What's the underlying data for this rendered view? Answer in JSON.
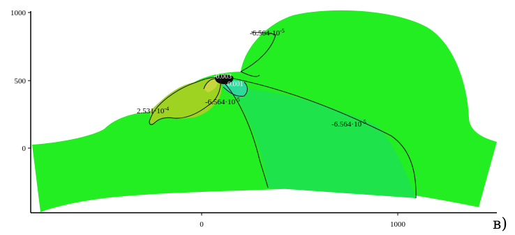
{
  "figure": {
    "caption": "в)",
    "colors": {
      "main_field": "#22ee22",
      "lower_field": "#1fe34a",
      "positive_region": "#9ed321",
      "peak_region": "#c8d83c",
      "negative_region": "#2fd99b",
      "core": "#0b0b0b",
      "contour": "#1a1a1a"
    },
    "x_ticks": [
      "0",
      "1000"
    ],
    "y_ticks": [
      "1000",
      "500",
      "0"
    ],
    "contour_labels": [
      {
        "base": "-6.564·10",
        "exp": "-5"
      },
      {
        "base": "-6.564·10",
        "exp": "-5"
      },
      {
        "base": "-6.564·10",
        "exp": "-5"
      },
      {
        "base": "2.531·10",
        "exp": "-4"
      },
      {
        "base": "-0.003",
        "exp": ""
      },
      {
        "base": "0.001",
        "exp": ""
      }
    ]
  }
}
